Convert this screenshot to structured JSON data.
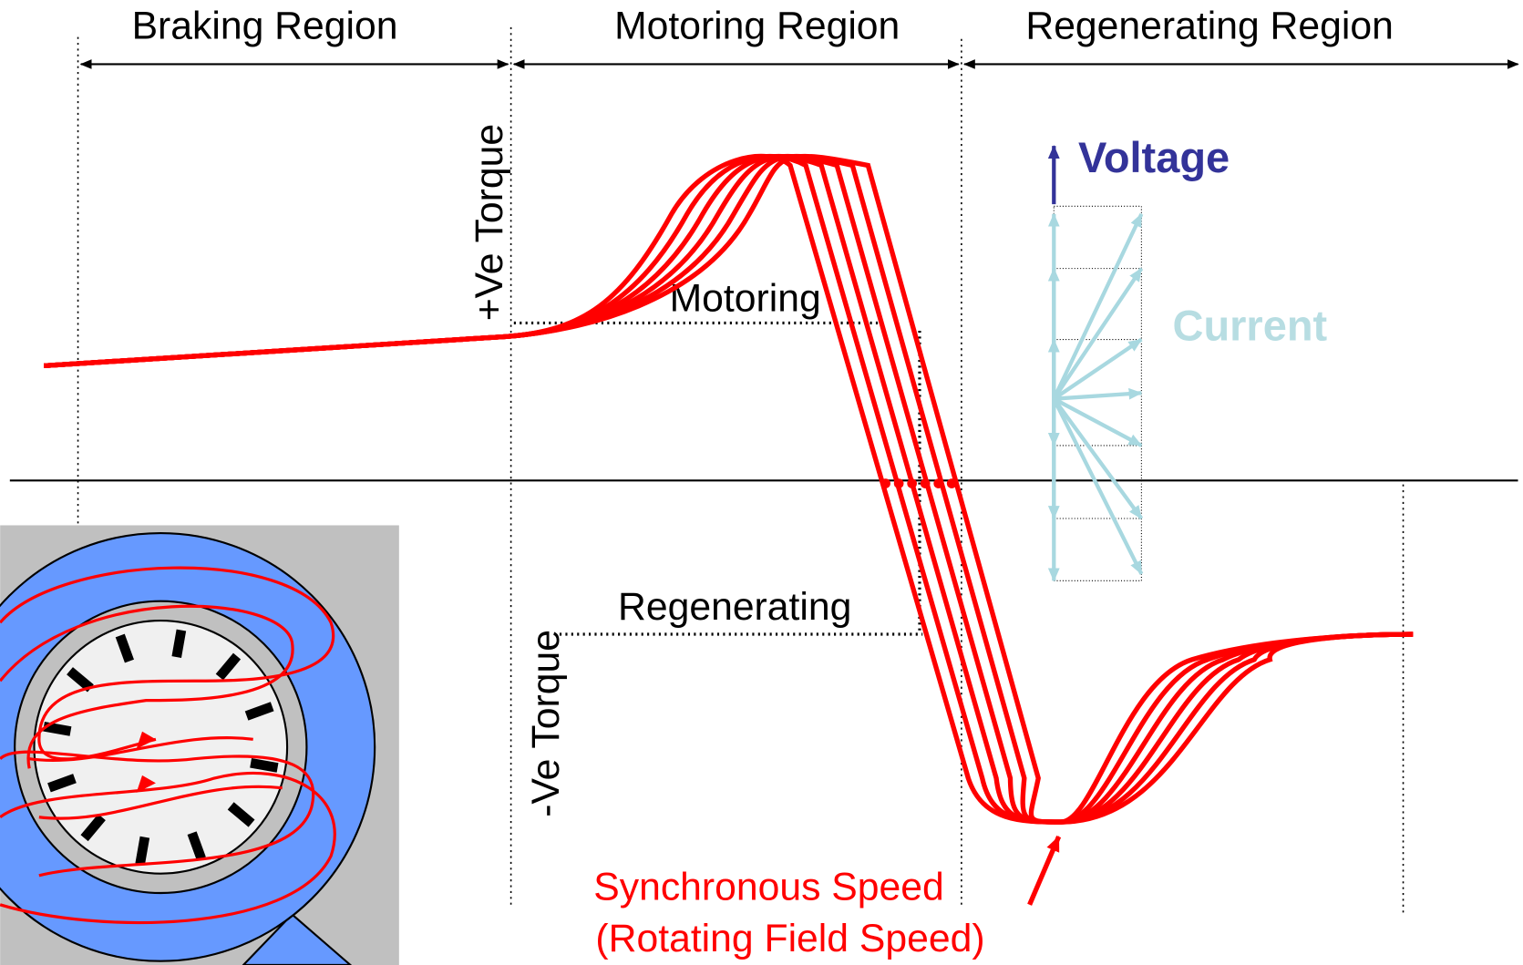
{
  "regions": {
    "braking": "Braking Region",
    "motoring": "Motoring Region",
    "regenerating": "Regenerating Region"
  },
  "axis_labels": {
    "positive_torque": "+Ve Torque",
    "negative_torque": "-Ve Torque"
  },
  "annotations": {
    "motoring": "Motoring",
    "regenerating": "Regenerating",
    "synchronous_speed": "Synchronous Speed",
    "rotating_field_speed": "(Rotating Field Speed)"
  },
  "phasor": {
    "voltage": "Voltage",
    "current": "Current"
  }
}
